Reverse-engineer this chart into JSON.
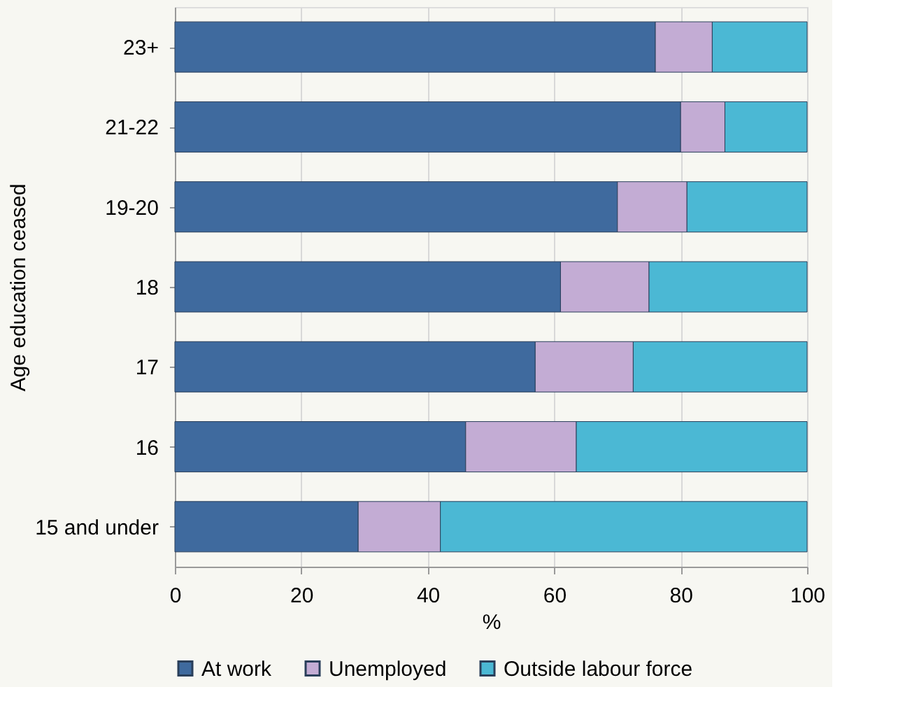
{
  "chart_data": {
    "type": "bar",
    "orientation": "horizontal",
    "stacked": true,
    "categories": [
      "23+",
      "21-22",
      "19-20",
      "18",
      "17",
      "16",
      "15 and under"
    ],
    "series": [
      {
        "name": "At work",
        "color": "#3f6a9e",
        "values": [
          76,
          80,
          70,
          61,
          57,
          46,
          29
        ]
      },
      {
        "name": "Unemployed",
        "color": "#c3acd4",
        "values": [
          9,
          7,
          11,
          14,
          15.5,
          17.5,
          13
        ]
      },
      {
        "name": "Outside labour force",
        "color": "#4bb8d4",
        "values": [
          15,
          13,
          19,
          25,
          27.5,
          36.5,
          58
        ]
      }
    ],
    "xlim": [
      0,
      100
    ],
    "xticks": [
      0,
      20,
      40,
      60,
      80,
      100
    ],
    "xlabel": "%",
    "ylabel": "Age education ceased",
    "grid": "x",
    "legend": "bottom"
  }
}
